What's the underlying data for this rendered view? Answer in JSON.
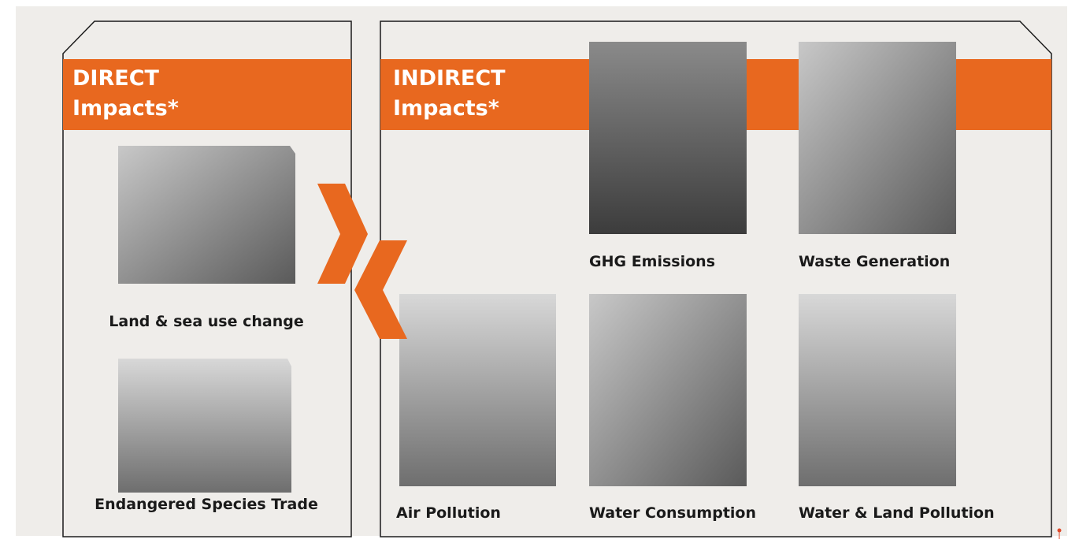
{
  "direct": {
    "heading": "DIRECT",
    "subheading": "Impacts*",
    "items": [
      "Land & sea use change",
      "Endangered Species Trade"
    ]
  },
  "indirect": {
    "heading": "INDIRECT",
    "subheading": "Impacts*",
    "items": [
      "GHG Emissions",
      "Waste Generation",
      "Air Pollution",
      "Water Consumption",
      "Water & Land Pollution"
    ]
  }
}
